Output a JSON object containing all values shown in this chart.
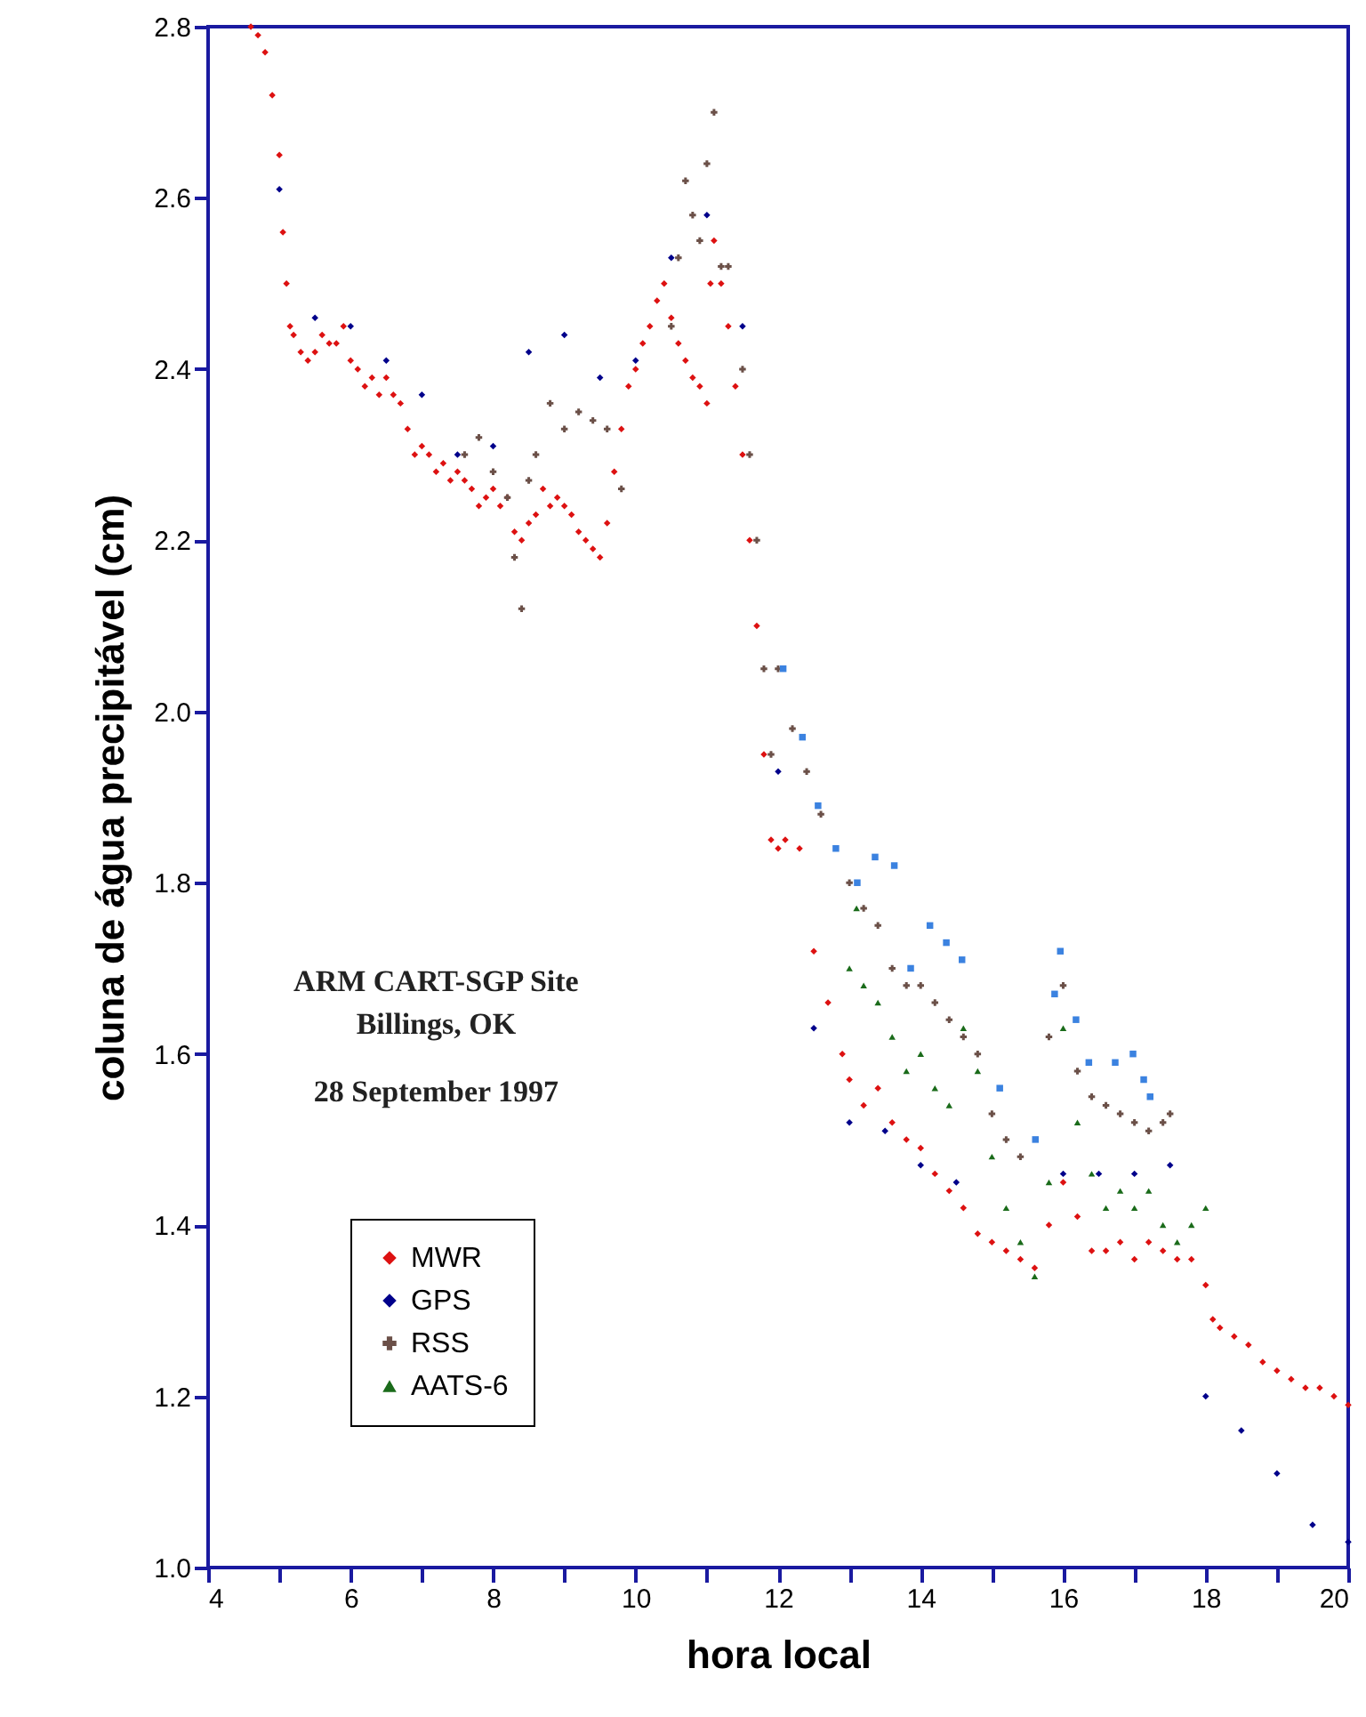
{
  "chart_data": {
    "type": "scatter",
    "xlabel": "hora local",
    "ylabel": "coluna de água precipitável (cm)",
    "annotations": [
      "ARM CART-SGP Site",
      "Billings, OK",
      "28 September 1997"
    ],
    "xlim": [
      4,
      20
    ],
    "ylim": [
      1.0,
      2.8
    ],
    "xticks": [
      4,
      {
        "value": 5,
        "label": null
      },
      6,
      {
        "value": 7,
        "label": null
      },
      8,
      {
        "value": 9,
        "label": null
      },
      10,
      {
        "value": 11,
        "label": null
      },
      12,
      {
        "value": 13,
        "label": null
      },
      14,
      {
        "value": 15,
        "label": null
      },
      16,
      {
        "value": 17,
        "label": null
      },
      18,
      {
        "value": 19,
        "label": null
      },
      20
    ],
    "yticks": [
      {
        "value": 1,
        "label": "1.0"
      },
      1.2,
      1.4,
      1.6,
      1.8,
      {
        "value": 2,
        "label": "2.0"
      },
      2.2,
      2.4,
      2.6,
      2.8
    ],
    "grid": false,
    "legend": "bottom left",
    "series": [
      {
        "name": "MWR",
        "color": "#dd1111",
        "marker": "diamond",
        "x": [
          4.6,
          4.7,
          4.8,
          4.9,
          5.0,
          5.05,
          5.1,
          5.15,
          5.2,
          5.3,
          5.4,
          5.5,
          5.6,
          5.7,
          5.8,
          5.9,
          6.0,
          6.1,
          6.2,
          6.3,
          6.4,
          6.5,
          6.6,
          6.7,
          6.8,
          6.9,
          7.0,
          7.1,
          7.2,
          7.3,
          7.4,
          7.5,
          7.6,
          7.7,
          7.8,
          7.9,
          8.0,
          8.1,
          8.2,
          8.3,
          8.4,
          8.5,
          8.6,
          8.7,
          8.8,
          8.9,
          9.0,
          9.1,
          9.2,
          9.3,
          9.4,
          9.5,
          9.6,
          9.7,
          9.8,
          9.9,
          10.0,
          10.1,
          10.2,
          10.3,
          10.4,
          10.5,
          10.6,
          10.7,
          10.8,
          10.9,
          11.0,
          11.05,
          11.1,
          11.2,
          11.3,
          11.4,
          11.5,
          11.6,
          11.7,
          11.8,
          11.9,
          12.0,
          12.1,
          12.3,
          12.5,
          12.7,
          12.9,
          13.0,
          13.2,
          13.4,
          13.6,
          13.8,
          14.0,
          14.2,
          14.4,
          14.6,
          14.8,
          15.0,
          15.2,
          15.4,
          15.6,
          15.8,
          16.0,
          16.2,
          16.4,
          16.6,
          16.8,
          17.0,
          17.2,
          17.4,
          17.6,
          17.8,
          18.0,
          18.1,
          18.2,
          18.4,
          18.6,
          18.8,
          19.0,
          19.2,
          19.4,
          19.6,
          19.8,
          20.0
        ],
        "values": [
          2.8,
          2.79,
          2.77,
          2.72,
          2.65,
          2.56,
          2.5,
          2.45,
          2.44,
          2.42,
          2.41,
          2.42,
          2.44,
          2.43,
          2.43,
          2.45,
          2.41,
          2.4,
          2.38,
          2.39,
          2.37,
          2.39,
          2.37,
          2.36,
          2.33,
          2.3,
          2.31,
          2.3,
          2.28,
          2.29,
          2.27,
          2.28,
          2.27,
          2.26,
          2.24,
          2.25,
          2.26,
          2.24,
          2.25,
          2.21,
          2.2,
          2.22,
          2.23,
          2.26,
          2.24,
          2.25,
          2.24,
          2.23,
          2.21,
          2.2,
          2.19,
          2.18,
          2.22,
          2.28,
          2.33,
          2.38,
          2.4,
          2.43,
          2.45,
          2.48,
          2.5,
          2.46,
          2.43,
          2.41,
          2.39,
          2.38,
          2.36,
          2.5,
          2.55,
          2.5,
          2.45,
          2.38,
          2.3,
          2.2,
          2.1,
          1.95,
          1.85,
          1.84,
          1.85,
          1.84,
          1.72,
          1.66,
          1.6,
          1.57,
          1.54,
          1.56,
          1.52,
          1.5,
          1.49,
          1.46,
          1.44,
          1.42,
          1.39,
          1.38,
          1.37,
          1.36,
          1.35,
          1.4,
          1.45,
          1.41,
          1.37,
          1.37,
          1.38,
          1.36,
          1.38,
          1.37,
          1.36,
          1.36,
          1.33,
          1.29,
          1.28,
          1.27,
          1.26,
          1.24,
          1.23,
          1.22,
          1.21,
          1.21,
          1.2,
          1.19
        ]
      },
      {
        "name": "GPS",
        "color": "#00008b",
        "marker": "diamond",
        "x": [
          5.0,
          5.5,
          6.0,
          6.5,
          7.0,
          7.5,
          8.0,
          8.5,
          9.0,
          9.5,
          10.0,
          10.5,
          11.0,
          11.5,
          12.0,
          12.5,
          13.0,
          13.5,
          14.0,
          14.5,
          16.0,
          16.5,
          17.0,
          17.5,
          18.0,
          18.5,
          19.0,
          19.5,
          20.0
        ],
        "values": [
          2.61,
          2.46,
          2.45,
          2.41,
          2.37,
          2.3,
          2.31,
          2.42,
          2.44,
          2.39,
          2.41,
          2.53,
          2.58,
          2.45,
          1.93,
          1.63,
          1.52,
          1.51,
          1.47,
          1.45,
          1.46,
          1.46,
          1.46,
          1.47,
          1.2,
          1.16,
          1.11,
          1.05,
          1.03
        ]
      },
      {
        "name": "RSS",
        "color": "#6b5048",
        "marker": "cross",
        "x": [
          7.6,
          7.8,
          8.0,
          8.2,
          8.3,
          8.4,
          8.5,
          8.6,
          8.8,
          9.0,
          9.2,
          9.4,
          9.6,
          9.8,
          10.5,
          10.6,
          10.7,
          10.8,
          10.9,
          11.0,
          11.1,
          11.2,
          11.3,
          11.5,
          11.6,
          11.7,
          11.8,
          11.9,
          12.0,
          12.2,
          12.4,
          12.6,
          12.8,
          13.0,
          13.2,
          13.4,
          13.6,
          13.8,
          14.0,
          14.2,
          14.4,
          14.6,
          14.8,
          15.0,
          15.2,
          15.4,
          15.6,
          15.8,
          16.0,
          16.2,
          16.4,
          16.6,
          16.8,
          17.0,
          17.2,
          17.4,
          17.5
        ],
        "values": [
          2.3,
          2.32,
          2.28,
          2.25,
          2.18,
          2.12,
          2.27,
          2.3,
          2.36,
          2.33,
          2.35,
          2.34,
          2.33,
          2.26,
          2.45,
          2.53,
          2.62,
          2.58,
          2.55,
          2.64,
          2.7,
          2.52,
          2.52,
          2.4,
          2.3,
          2.2,
          2.05,
          1.95,
          2.05,
          1.98,
          1.93,
          1.88,
          null,
          1.8,
          1.77,
          1.75,
          1.7,
          1.68,
          1.68,
          1.66,
          1.64,
          1.62,
          1.6,
          1.53,
          1.5,
          1.48,
          null,
          1.62,
          1.68,
          1.58,
          1.55,
          1.54,
          1.53,
          1.52,
          1.51,
          1.52,
          1.53
        ]
      },
      {
        "name": "AATS-6",
        "color": "#1a6b1a",
        "marker": "triangle",
        "x": [
          13.0,
          13.1,
          13.2,
          13.4,
          13.6,
          13.8,
          14.0,
          14.2,
          14.4,
          14.6,
          14.8,
          15.0,
          15.2,
          15.4,
          15.6,
          15.8,
          16.0,
          16.2,
          16.4,
          16.6,
          16.8,
          17.0,
          17.2,
          17.4,
          17.6,
          17.8,
          18.0
        ],
        "values": [
          1.7,
          1.77,
          1.68,
          1.66,
          1.62,
          1.58,
          1.6,
          1.56,
          1.54,
          1.63,
          1.58,
          1.48,
          1.42,
          1.38,
          1.34,
          1.45,
          1.63,
          1.52,
          1.46,
          1.42,
          1.44,
          1.42,
          1.44,
          1.4,
          1.38,
          1.4,
          1.42
        ]
      },
      {
        "color": "#3b82e0",
        "marker": "square",
        "x": [
          12.07,
          12.34,
          12.56,
          12.81,
          13.11,
          13.36,
          13.63,
          13.86,
          14.13,
          14.36,
          14.58,
          15.11,
          15.61,
          15.88,
          15.96,
          16.18,
          16.36,
          16.73,
          16.98,
          17.13,
          17.22
        ],
        "values": [
          2.05,
          1.97,
          1.89,
          1.84,
          1.8,
          1.83,
          1.82,
          1.7,
          1.75,
          1.73,
          1.71,
          1.56,
          1.5,
          1.67,
          1.72,
          1.64,
          1.59,
          1.59,
          1.6,
          1.57,
          1.55
        ]
      }
    ]
  }
}
